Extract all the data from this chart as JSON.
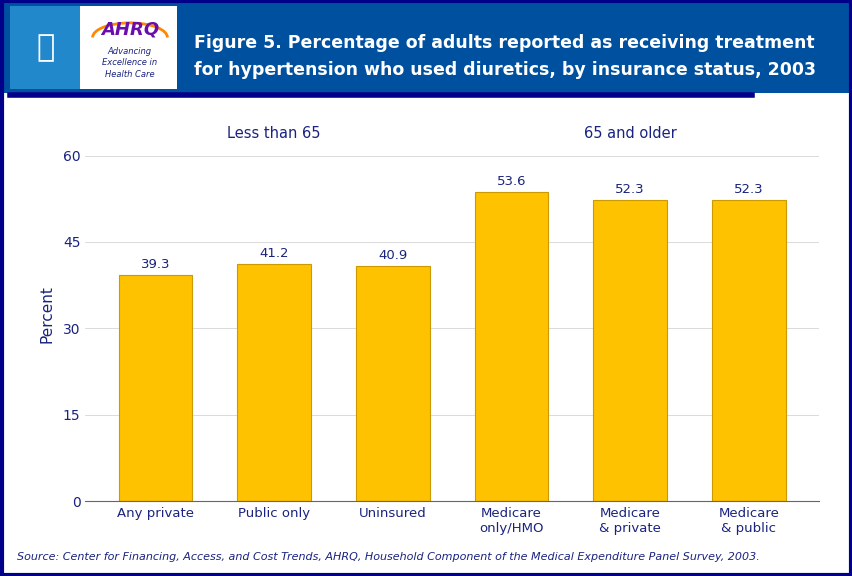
{
  "categories": [
    "Any private",
    "Public only",
    "Uninsured",
    "Medicare\nonly/HMO",
    "Medicare\n& private",
    "Medicare\n& public"
  ],
  "values": [
    39.3,
    41.2,
    40.9,
    53.6,
    52.3,
    52.3
  ],
  "bar_color": "#FFC200",
  "bar_edge_color": "#CC9900",
  "title_line1": "Figure 5. Percentage of adults reported as receiving treatment",
  "title_line2": "for hypertension who used diuretics, by insurance status, 2003",
  "ylabel": "Percent",
  "ylim": [
    0,
    65
  ],
  "yticks": [
    0,
    15,
    30,
    45,
    60
  ],
  "group_labels": [
    "Less than 65",
    "65 and older"
  ],
  "source_text": "Source: Center for Financing, Access, and Cost Trends, AHRQ, Household Component of the Medical Expenditure Panel Survey, 2003.",
  "text_color": "#1A237E",
  "dark_blue": "#00008B",
  "header_bg": "#0050A0",
  "background_color": "#FFFFFF",
  "title_fontsize": 12.5,
  "axis_fontsize": 10,
  "label_fontsize": 9.5,
  "value_fontsize": 9.5,
  "source_fontsize": 8,
  "group_label_fontsize": 10.5
}
